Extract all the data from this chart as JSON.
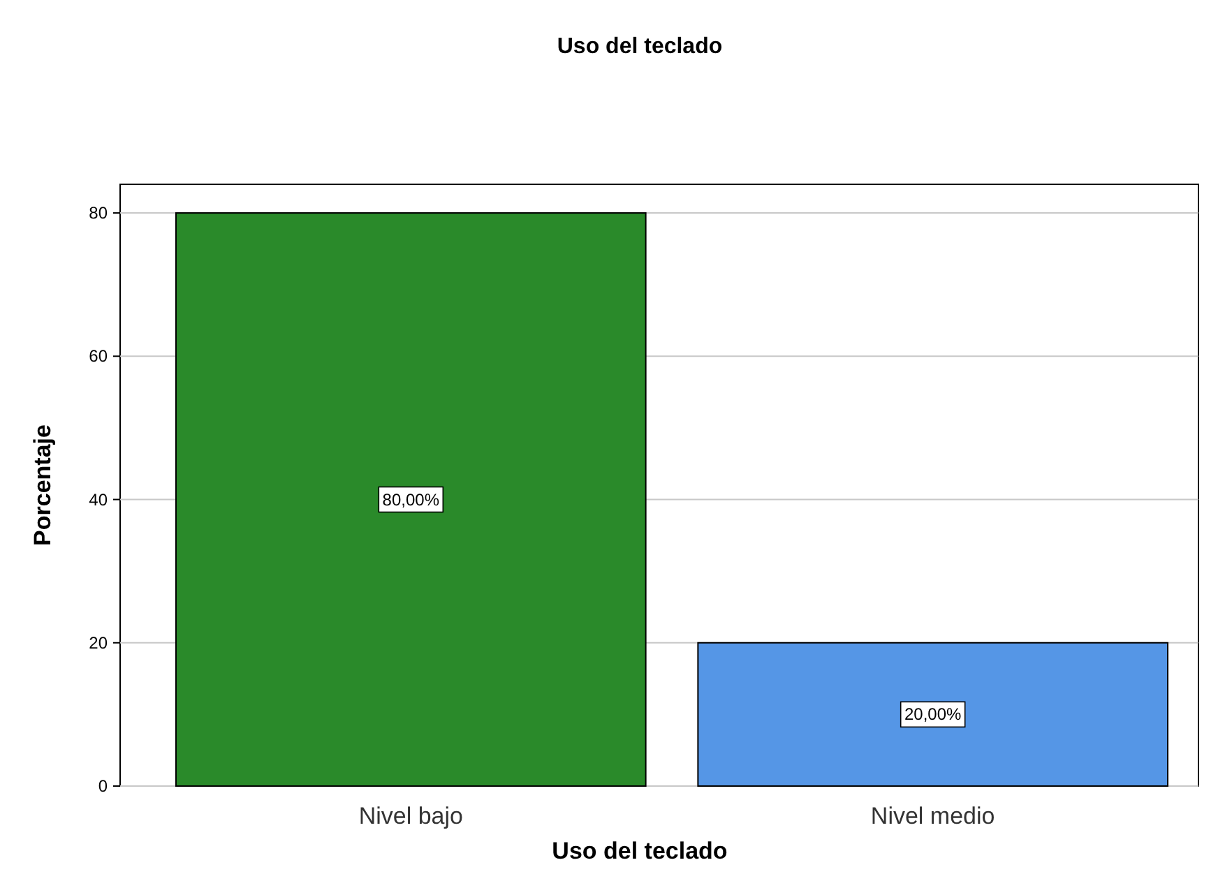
{
  "chart_data": {
    "type": "bar",
    "title": "Uso del teclado",
    "xlabel": "Uso del teclado",
    "ylabel": "Porcentaje",
    "categories": [
      "Nivel bajo",
      "Nivel medio"
    ],
    "values": [
      80,
      20
    ],
    "colors": [
      "#2a8a2a",
      "#5596e6"
    ],
    "value_labels": [
      "80,00%",
      "20,00%"
    ],
    "ylim": [
      0,
      84
    ],
    "yticks": [
      0,
      20,
      40,
      60,
      80
    ],
    "grid": "y"
  }
}
